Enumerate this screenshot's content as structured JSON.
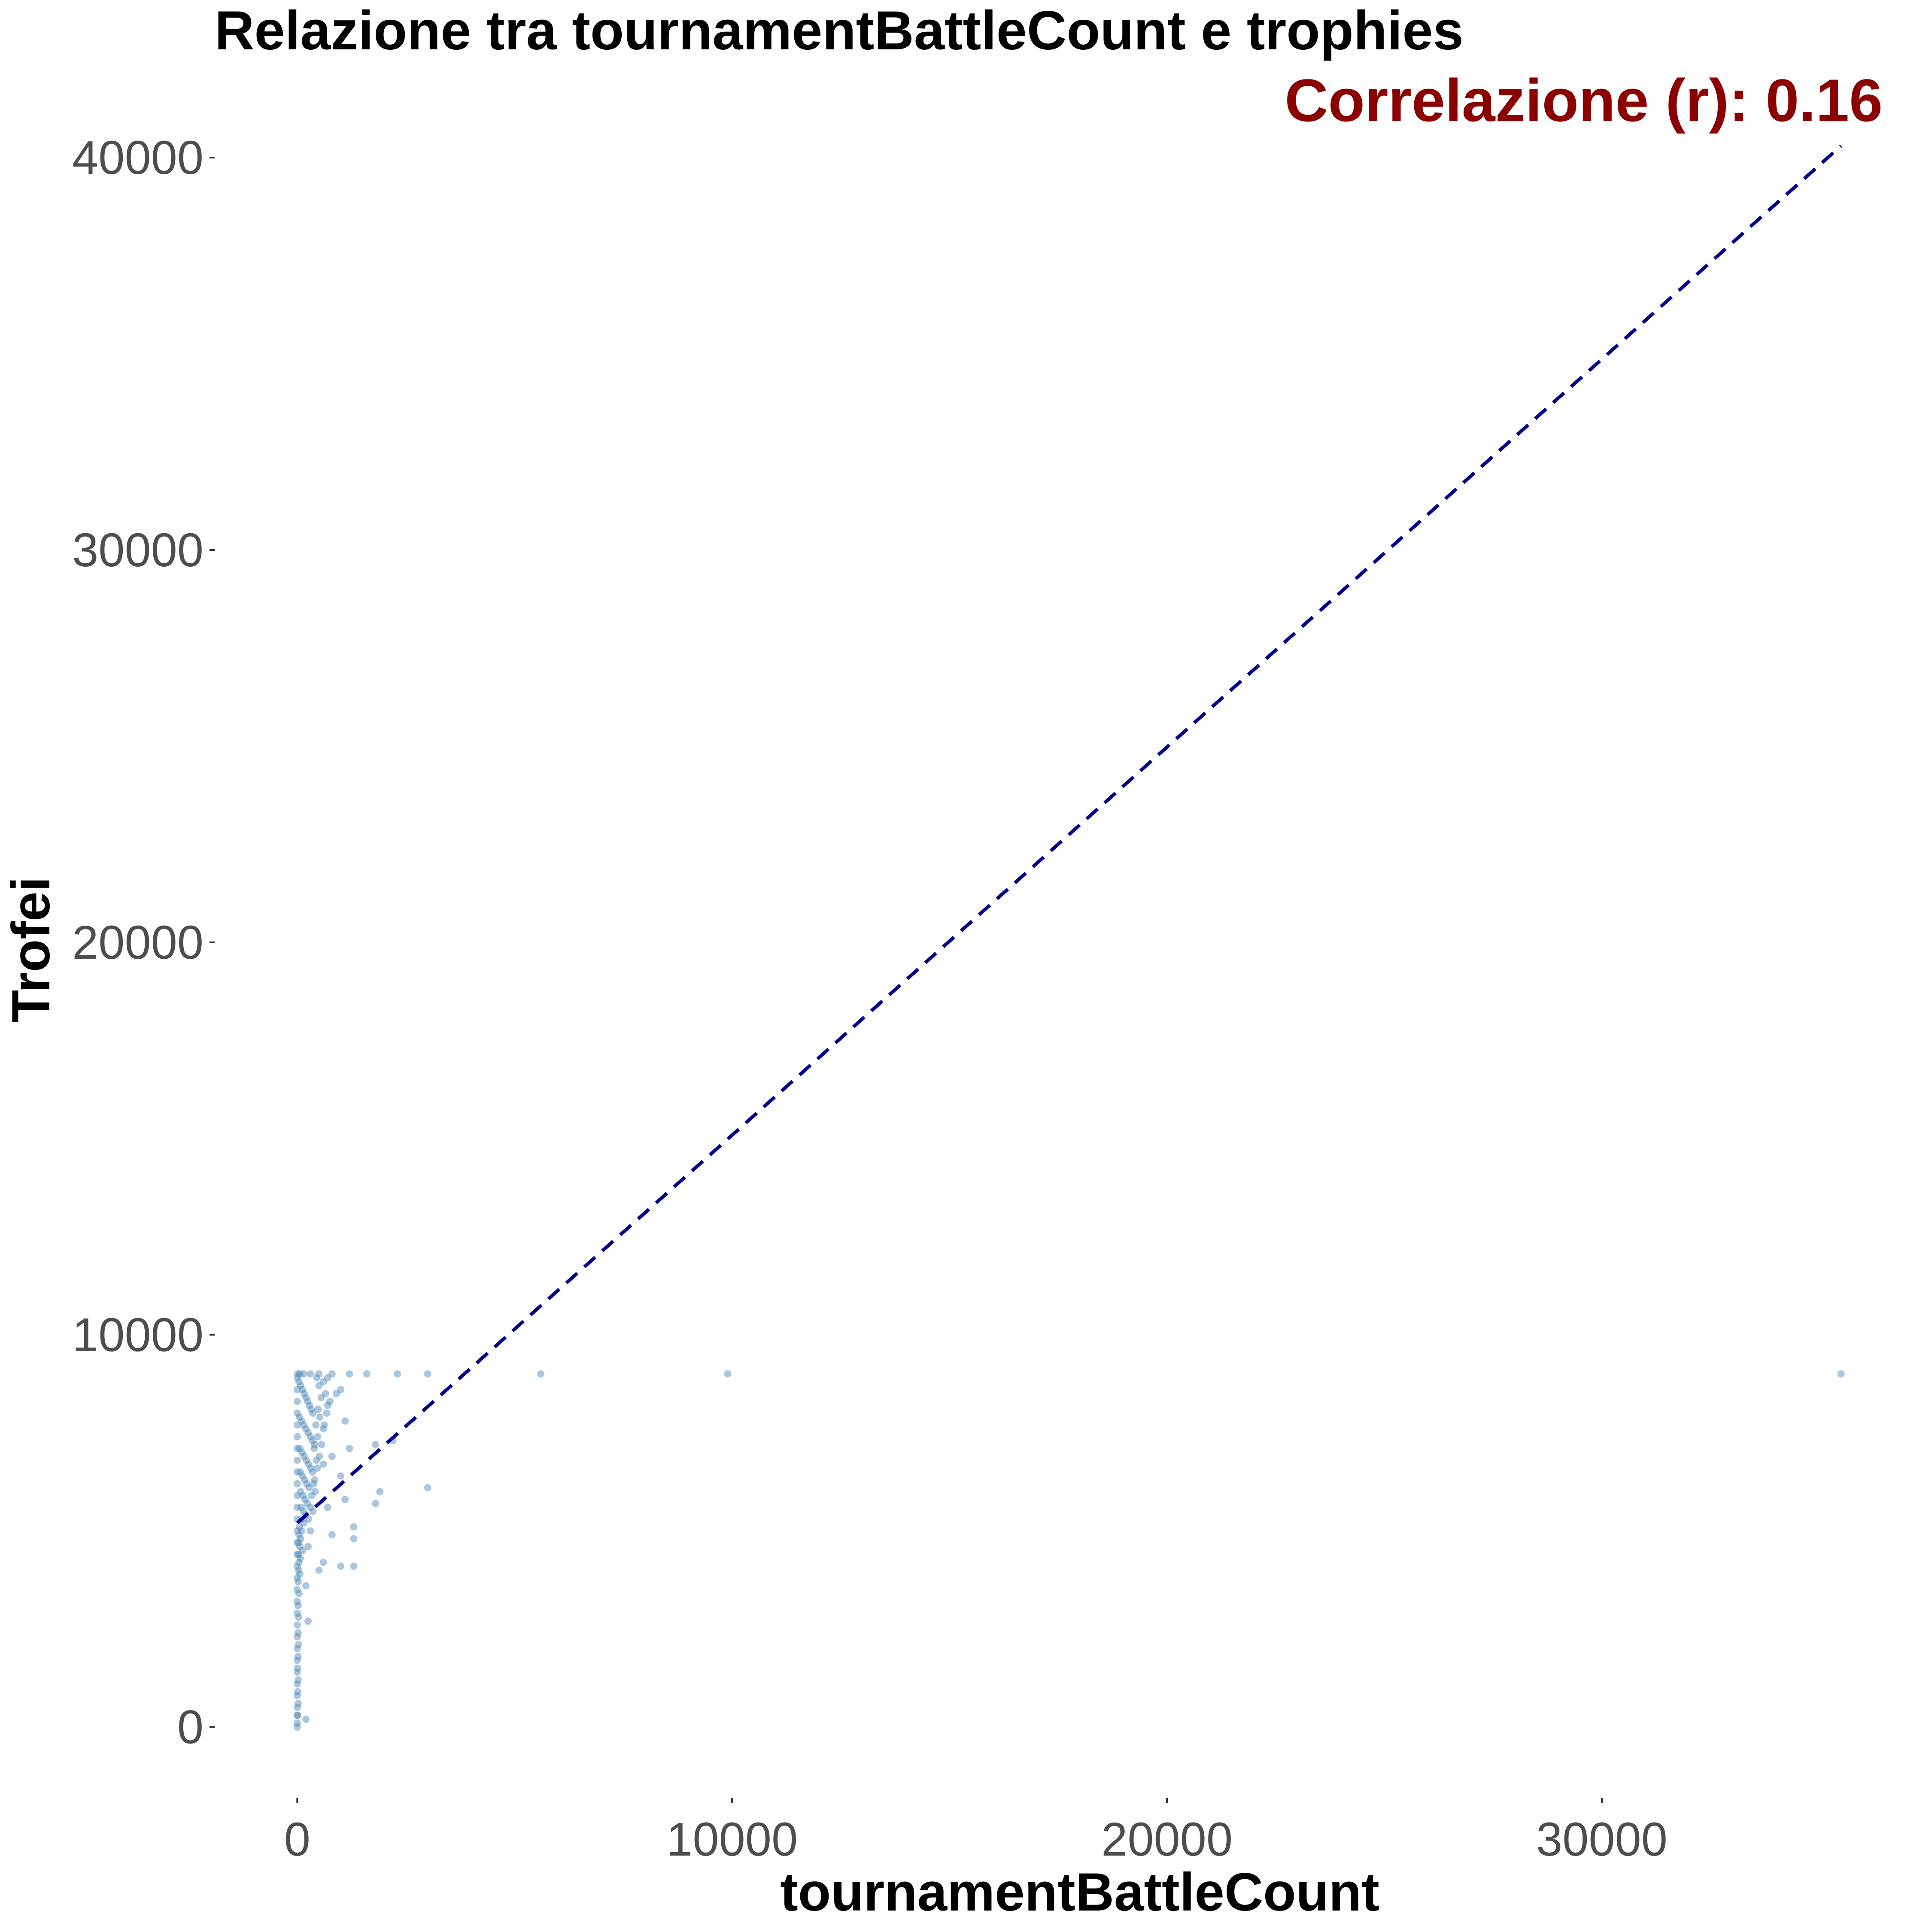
{
  "chart_data": {
    "type": "scatter",
    "title": "Relazione tra tournamentBattleCount e trophies",
    "annotation": "Correlazione (r): 0.16",
    "xlabel": "tournamentBattleCount",
    "ylabel": "Trofei",
    "xlim": [
      -1800,
      37000
    ],
    "ylim": [
      -1700,
      41500
    ],
    "x_ticks": [
      0,
      10000,
      20000,
      30000
    ],
    "x_tick_labels": [
      "0",
      "10000",
      "20000",
      "30000"
    ],
    "y_ticks": [
      0,
      10000,
      20000,
      30000,
      40000
    ],
    "y_tick_labels": [
      "0",
      "10000",
      "20000",
      "30000",
      "40000"
    ],
    "grid": false,
    "legend": "none",
    "trend_line": {
      "style": "dashed",
      "x": [
        0,
        35500
      ],
      "y": [
        5200,
        40300
      ]
    },
    "series": [
      {
        "points": [
          [
            10,
            9000
          ],
          [
            60,
            9000
          ],
          [
            150,
            9000
          ],
          [
            300,
            9000
          ],
          [
            500,
            9000
          ],
          [
            800,
            9000
          ],
          [
            1200,
            9000
          ],
          [
            1600,
            9000
          ],
          [
            2300,
            9000
          ],
          [
            3000,
            9000
          ],
          [
            5600,
            9000
          ],
          [
            9900,
            9000
          ],
          [
            35500,
            9000
          ],
          [
            1000,
            8600
          ],
          [
            900,
            8500
          ],
          [
            700,
            8200
          ],
          [
            1100,
            7800
          ],
          [
            600,
            7600
          ],
          [
            2200,
            7300
          ],
          [
            1800,
            7200
          ],
          [
            1200,
            7100
          ],
          [
            800,
            6900
          ],
          [
            600,
            6700
          ],
          [
            1000,
            6400
          ],
          [
            400,
            6300
          ],
          [
            3000,
            6100
          ],
          [
            1900,
            6000
          ],
          [
            1100,
            5800
          ],
          [
            1800,
            5700
          ],
          [
            700,
            5600
          ],
          [
            1300,
            5100
          ],
          [
            800,
            4900
          ],
          [
            1300,
            4800
          ],
          [
            600,
            4200
          ],
          [
            1000,
            4100
          ],
          [
            1300,
            4100
          ],
          [
            500,
            4000
          ],
          [
            200,
            3600
          ],
          [
            250,
            2700
          ],
          [
            200,
            200
          ],
          [
            0,
            0
          ],
          [
            0,
            100
          ],
          [
            0,
            300
          ],
          [
            0,
            500
          ],
          [
            0,
            800
          ],
          [
            0,
            1100
          ],
          [
            0,
            1400
          ],
          [
            0,
            1700
          ],
          [
            0,
            2000
          ],
          [
            0,
            2300
          ],
          [
            0,
            2600
          ],
          [
            0,
            2900
          ],
          [
            0,
            3200
          ],
          [
            0,
            3500
          ],
          [
            0,
            3800
          ],
          [
            0,
            4100
          ],
          [
            0,
            4400
          ],
          [
            0,
            4700
          ],
          [
            0,
            5000
          ],
          [
            0,
            5300
          ],
          [
            0,
            5600
          ],
          [
            0,
            5900
          ],
          [
            0,
            6200
          ],
          [
            0,
            6500
          ],
          [
            0,
            6800
          ],
          [
            0,
            7100
          ],
          [
            0,
            7400
          ],
          [
            0,
            7700
          ],
          [
            0,
            8000
          ],
          [
            0,
            8300
          ],
          [
            0,
            8600
          ],
          [
            0,
            8900
          ],
          [
            40,
            8800
          ],
          [
            80,
            8700
          ],
          [
            120,
            8600
          ],
          [
            160,
            8500
          ],
          [
            200,
            8400
          ],
          [
            240,
            8300
          ],
          [
            280,
            8200
          ],
          [
            320,
            8100
          ],
          [
            360,
            8000
          ],
          [
            50,
            7900
          ],
          [
            100,
            7800
          ],
          [
            150,
            7700
          ],
          [
            200,
            7600
          ],
          [
            250,
            7500
          ],
          [
            300,
            7400
          ],
          [
            350,
            7300
          ],
          [
            400,
            7200
          ],
          [
            60,
            7100
          ],
          [
            110,
            7000
          ],
          [
            160,
            6900
          ],
          [
            210,
            6800
          ],
          [
            260,
            6700
          ],
          [
            310,
            6600
          ],
          [
            70,
            6500
          ],
          [
            120,
            6400
          ],
          [
            170,
            6300
          ],
          [
            220,
            6200
          ],
          [
            270,
            6100
          ],
          [
            80,
            6000
          ],
          [
            130,
            5900
          ],
          [
            180,
            5800
          ],
          [
            230,
            5700
          ],
          [
            90,
            5600
          ],
          [
            140,
            5500
          ],
          [
            190,
            5400
          ],
          [
            100,
            5300
          ],
          [
            150,
            5200
          ],
          [
            50,
            5100
          ],
          [
            100,
            5000
          ],
          [
            40,
            4900
          ],
          [
            80,
            4800
          ],
          [
            30,
            4700
          ],
          [
            60,
            4600
          ],
          [
            120,
            4500
          ],
          [
            30,
            4400
          ],
          [
            70,
            4300
          ],
          [
            40,
            4200
          ],
          [
            30,
            4000
          ],
          [
            60,
            3900
          ],
          [
            20,
            3700
          ],
          [
            40,
            3400
          ],
          [
            20,
            3100
          ],
          [
            30,
            2800
          ],
          [
            20,
            2400
          ],
          [
            30,
            2100
          ],
          [
            20,
            1800
          ],
          [
            10,
            1500
          ],
          [
            20,
            1200
          ],
          [
            10,
            900
          ],
          [
            20,
            600
          ],
          [
            10,
            300
          ],
          [
            450,
            8900
          ],
          [
            500,
            8700
          ],
          [
            550,
            8400
          ],
          [
            480,
            8100
          ],
          [
            520,
            7900
          ],
          [
            430,
            7700
          ],
          [
            470,
            7400
          ],
          [
            390,
            7100
          ],
          [
            440,
            6800
          ],
          [
            350,
            6500
          ],
          [
            380,
            6200
          ],
          [
            330,
            5900
          ],
          [
            300,
            5600
          ],
          [
            260,
            5300
          ],
          [
            600,
            8800
          ],
          [
            650,
            8500
          ],
          [
            700,
            8900
          ],
          [
            750,
            8300
          ],
          [
            680,
            8000
          ],
          [
            620,
            7700
          ],
          [
            560,
            7200
          ],
          [
            510,
            6900
          ],
          [
            460,
            6600
          ],
          [
            410,
            6000
          ],
          [
            360,
            5500
          ],
          [
            300,
            5000
          ],
          [
            250,
            4600
          ]
        ]
      }
    ]
  },
  "colors": {
    "points": "#4682b4",
    "trend_line": "#00008b",
    "annotation": "#8b0000",
    "tick_label": "#4d4d4d",
    "title": "#000000"
  }
}
